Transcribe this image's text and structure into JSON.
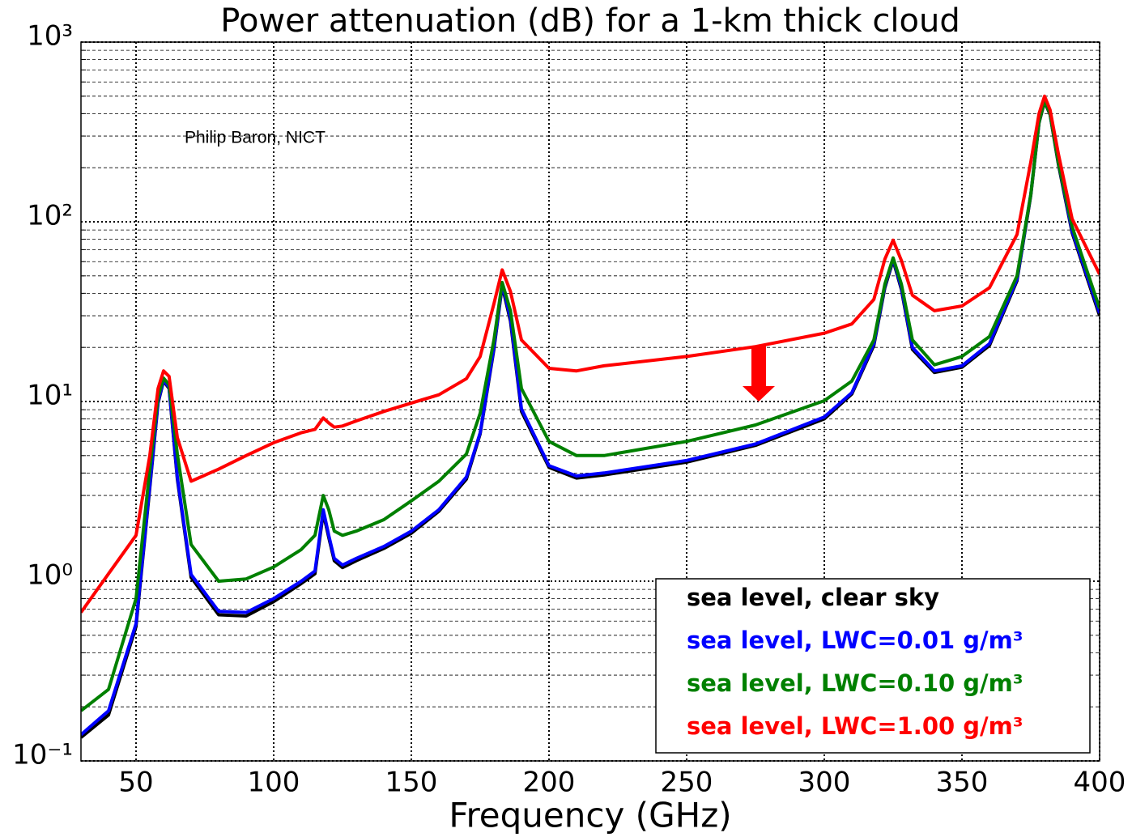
{
  "chart_data": {
    "type": "line",
    "title": "Power attenuation (dB) for a 1-km thick cloud",
    "xlabel": "Frequency (GHz)",
    "annotation": "Philip Baron, NICT",
    "log_y": true,
    "grid": true,
    "legend": "lower right",
    "xlim": [
      30,
      400
    ],
    "ylim": [
      0.1,
      1000
    ],
    "xticks": [
      50,
      100,
      150,
      200,
      250,
      300,
      350,
      400
    ],
    "yticks": [
      {
        "value": 0.1,
        "label": "10⁻¹"
      },
      {
        "value": 1,
        "label": "10⁰"
      },
      {
        "value": 10,
        "label": "10¹"
      },
      {
        "value": 100,
        "label": "10²"
      },
      {
        "value": 1000,
        "label": "10³"
      }
    ],
    "yminor_ticks": [
      0.2,
      0.3,
      0.4,
      0.5,
      0.6,
      0.7,
      0.8,
      0.9,
      2,
      3,
      4,
      5,
      6,
      7,
      8,
      9,
      20,
      30,
      40,
      50,
      60,
      70,
      80,
      90,
      200,
      300,
      400,
      500,
      600,
      700,
      800,
      900
    ],
    "x": [
      30,
      40,
      50,
      55,
      58,
      60,
      62,
      65,
      70,
      80,
      90,
      100,
      110,
      115,
      118,
      120,
      122,
      125,
      130,
      140,
      150,
      160,
      170,
      175,
      180,
      183,
      186,
      190,
      200,
      210,
      220,
      250,
      275,
      300,
      310,
      318,
      322,
      325,
      328,
      332,
      340,
      350,
      360,
      370,
      375,
      378,
      380,
      382,
      385,
      390,
      400
    ],
    "series": [
      {
        "name": "sea level, clear sky",
        "color": "#000000",
        "values": [
          0.135,
          0.18,
          0.56,
          3.3,
          9.8,
          13,
          11.8,
          3.7,
          1.05,
          0.65,
          0.64,
          0.77,
          0.97,
          1.1,
          2.4,
          1.75,
          1.3,
          1.19,
          1.3,
          1.52,
          1.85,
          2.45,
          3.7,
          6.6,
          19.5,
          44,
          28,
          8.8,
          4.3,
          3.75,
          3.9,
          4.6,
          5.7,
          8.0,
          11,
          20.5,
          43,
          61,
          42,
          19.5,
          14.5,
          15.5,
          20.5,
          47,
          140,
          355,
          465,
          395,
          210,
          87,
          30
        ]
      },
      {
        "name": "sea level, LWC=0.01 g/m³",
        "color": "#0000ff",
        "values": [
          0.14,
          0.19,
          0.58,
          3.4,
          10,
          13.1,
          12,
          3.8,
          1.09,
          0.68,
          0.67,
          0.8,
          1.0,
          1.14,
          2.5,
          1.8,
          1.34,
          1.23,
          1.34,
          1.56,
          1.9,
          2.5,
          3.8,
          6.7,
          20,
          45,
          29,
          9.1,
          4.4,
          3.85,
          4,
          4.7,
          5.8,
          8.2,
          11.2,
          21,
          44,
          62,
          43,
          20,
          14.8,
          15.8,
          21,
          48,
          142,
          360,
          470,
          400,
          215,
          89,
          31
        ]
      },
      {
        "name": "sea level, LWC=0.10 g/m³",
        "color": "#008000",
        "values": [
          0.19,
          0.25,
          0.8,
          4.2,
          10.6,
          13.5,
          12.4,
          5.1,
          1.6,
          1.0,
          1.03,
          1.2,
          1.5,
          1.8,
          3.0,
          2.5,
          1.9,
          1.8,
          1.9,
          2.2,
          2.8,
          3.6,
          5.1,
          8.6,
          22,
          46,
          32,
          11.8,
          6,
          5,
          5,
          6,
          7.4,
          10.1,
          13,
          22,
          45,
          63,
          45,
          22,
          16,
          17.8,
          23,
          50,
          142,
          360,
          470,
          400,
          215,
          94,
          33
        ]
      },
      {
        "name": "sea level, LWC=1.00 g/m³",
        "color": "#ff0000",
        "values": [
          0.67,
          1.1,
          1.8,
          5,
          11.8,
          14.8,
          13.8,
          6.3,
          3.6,
          4.2,
          5,
          5.9,
          6.7,
          7,
          8.1,
          7.6,
          7.2,
          7.3,
          7.8,
          8.8,
          9.8,
          10.9,
          13.4,
          17.8,
          35,
          54,
          41,
          22,
          15.3,
          14.8,
          15.8,
          17.8,
          20.2,
          24,
          27,
          37,
          62,
          79,
          61,
          39,
          32,
          34,
          43,
          85,
          215,
          400,
          500,
          420,
          240,
          104,
          51
        ]
      }
    ]
  }
}
